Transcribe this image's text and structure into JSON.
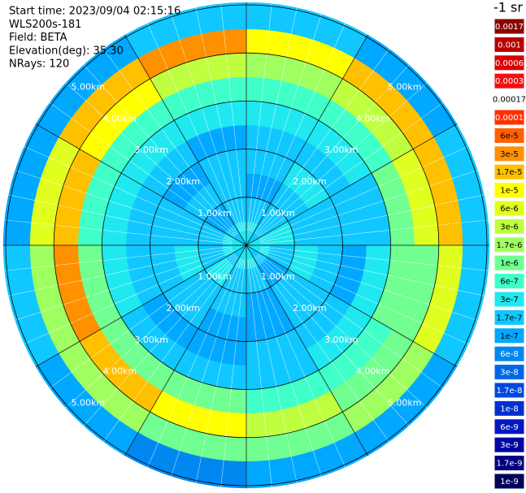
{
  "header": {
    "lines": [
      "Start time: 2023/09/04 02:15:16",
      "WLS200s-181",
      "Field: BETA",
      "Elevation(deg): 35.30",
      "NRays: 120"
    ],
    "unit": "-1 sr"
  },
  "colorbar": [
    {
      "value": 0.0017,
      "label": "0.0017",
      "color": "#8b0000"
    },
    {
      "value": 0.001,
      "label": "0.001",
      "color": "#b80000"
    },
    {
      "value": 0.0006,
      "label": "0.0006",
      "color": "#d80000"
    },
    {
      "value": 0.0003,
      "label": "0.0003",
      "color": "#f01010"
    },
    {
      "value": 0.00017,
      "label": "0.00017",
      "color": "#ffffff"
    },
    {
      "value": 0.0001,
      "label": "0.0001",
      "color": "#ff3000"
    },
    {
      "value": 6e-05,
      "label": "6e-5",
      "color": "#ff6000"
    },
    {
      "value": 3e-05,
      "label": "3e-5",
      "color": "#ff9000"
    },
    {
      "value": 1.7e-05,
      "label": "1.7e-5",
      "color": "#ffc000"
    },
    {
      "value": 1e-05,
      "label": "1e-5",
      "color": "#ffff00"
    },
    {
      "value": 6e-06,
      "label": "6e-6",
      "color": "#e0ff20"
    },
    {
      "value": 3e-06,
      "label": "3e-6",
      "color": "#c0ff40"
    },
    {
      "value": 1.7e-06,
      "label": "1.7e-6",
      "color": "#a0ff60"
    },
    {
      "value": 1e-06,
      "label": "1e-6",
      "color": "#70ff90"
    },
    {
      "value": 6e-07,
      "label": "6e-7",
      "color": "#40ffc8"
    },
    {
      "value": 3e-07,
      "label": "3e-7",
      "color": "#20e8f0"
    },
    {
      "value": 1.7e-07,
      "label": "1.7e-7",
      "color": "#10c8ff"
    },
    {
      "value": 1e-07,
      "label": "1e-7",
      "color": "#00a8ff"
    },
    {
      "value": 6e-08,
      "label": "6e-8",
      "color": "#0088f0"
    },
    {
      "value": 3e-08,
      "label": "3e-8",
      "color": "#0068e8"
    },
    {
      "value": 1.7e-08,
      "label": "1.7e-8",
      "color": "#0048e0"
    },
    {
      "value": 1e-08,
      "label": "1e-8",
      "color": "#0030d0"
    },
    {
      "value": 6e-09,
      "label": "6e-9",
      "color": "#0018c0"
    },
    {
      "value": 3e-09,
      "label": "3e-9",
      "color": "#0008a0"
    },
    {
      "value": 1.7e-09,
      "label": "1.7e-9",
      "color": "#000080"
    },
    {
      "value": 1e-09,
      "label": "1e-9",
      "color": "#000058"
    }
  ],
  "range_rings": [
    {
      "value": 1,
      "label": "1.00km"
    },
    {
      "value": 2,
      "label": "2.00km"
    },
    {
      "value": 3,
      "label": "3.00km"
    },
    {
      "value": 4,
      "label": "4.00km"
    },
    {
      "value": 5,
      "label": "5.00km"
    }
  ],
  "field": {
    "ring_edges_km": [
      0,
      0.5,
      1,
      1.5,
      2,
      2.5,
      3,
      3.5,
      4,
      4.5,
      5.05
    ],
    "values": [
      [
        3e-07,
        1.7e-07,
        3e-07,
        3e-07,
        1.7e-07,
        3e-07,
        3e-07,
        1.7e-07,
        3e-07,
        3e-07,
        1.7e-07,
        3e-07
      ],
      [
        1.7e-07,
        1.7e-07,
        3e-07,
        1.7e-07,
        1e-07,
        1.7e-07,
        1.7e-07,
        3e-07,
        1.7e-07,
        1.7e-07,
        1e-07,
        1.7e-07
      ],
      [
        1e-07,
        1.7e-07,
        1.7e-07,
        3e-07,
        1.7e-07,
        1e-07,
        1.7e-07,
        1.7e-07,
        3e-07,
        1.7e-07,
        1.7e-07,
        1.7e-07
      ],
      [
        1.7e-07,
        3e-07,
        1.7e-07,
        1.7e-07,
        1.7e-07,
        1e-07,
        1e-07,
        1.7e-07,
        1.7e-07,
        1.7e-07,
        1e-07,
        1.7e-07
      ],
      [
        1.7e-07,
        1.7e-07,
        1.7e-07,
        1e-07,
        1.7e-07,
        1.7e-07,
        1e-07,
        1e-07,
        1.7e-07,
        1.7e-07,
        1.7e-07,
        1e-07
      ],
      [
        3e-07,
        3e-07,
        1.7e-07,
        3e-07,
        3e-07,
        1.7e-07,
        1.7e-07,
        1.7e-07,
        3e-07,
        3e-07,
        3e-07,
        3e-07
      ],
      [
        6e-07,
        6e-07,
        1e-06,
        1e-06,
        6e-07,
        6e-07,
        1e-06,
        1e-06,
        1e-06,
        6e-07,
        6e-07,
        6e-07
      ],
      [
        1.7e-06,
        3e-06,
        6e-06,
        1e-06,
        1e-06,
        3e-06,
        1e-05,
        1.7e-05,
        3e-05,
        1.7e-05,
        1e-05,
        3e-06
      ],
      [
        1e-05,
        1.7e-05,
        1.7e-05,
        6e-06,
        1.7e-06,
        1e-06,
        1e-06,
        1.7e-06,
        1.7e-06,
        6e-06,
        1.7e-05,
        3e-05
      ],
      [
        1.7e-07,
        1e-07,
        1.7e-07,
        1.7e-07,
        1e-07,
        1e-07,
        6e-08,
        1e-07,
        1.7e-07,
        1e-07,
        1e-07,
        1.7e-07
      ]
    ]
  }
}
